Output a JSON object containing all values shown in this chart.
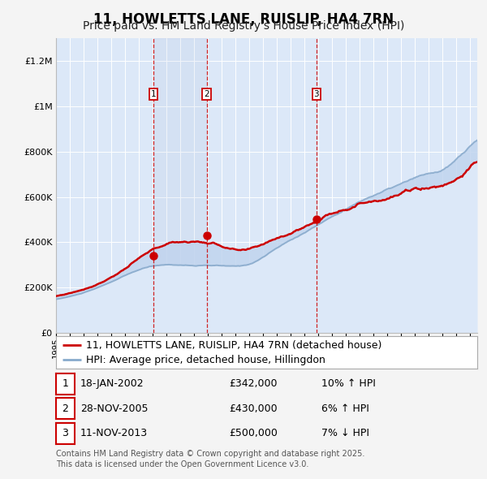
{
  "title": "11, HOWLETTS LANE, RUISLIP, HA4 7RN",
  "subtitle": "Price paid vs. HM Land Registry's House Price Index (HPI)",
  "legend_line1": "11, HOWLETTS LANE, RUISLIP, HA4 7RN (detached house)",
  "legend_line2": "HPI: Average price, detached house, Hillingdon",
  "sale_labels": [
    "1",
    "2",
    "3"
  ],
  "sale_dates_str": [
    "18-JAN-2002",
    "28-NOV-2005",
    "11-NOV-2013"
  ],
  "sale_prices_str": [
    "£342,000",
    "£430,000",
    "£500,000"
  ],
  "sale_hpi_str": [
    "10% ↑ HPI",
    "6% ↑ HPI",
    "7% ↓ HPI"
  ],
  "sale_dates_num": [
    2002.05,
    2005.91,
    2013.86
  ],
  "sale_prices": [
    342000,
    430000,
    500000
  ],
  "fig_bg_color": "#f4f4f4",
  "plot_bg_color": "#dce8f8",
  "grid_color": "#ffffff",
  "red_line_color": "#cc0000",
  "blue_line_color": "#88aacc",
  "shade_color": "#c0d4ee",
  "dashed_line_color": "#cc0000",
  "footnote": "Contains HM Land Registry data © Crown copyright and database right 2025.\nThis data is licensed under the Open Government Licence v3.0.",
  "ylim": [
    0,
    1300000
  ],
  "yticks": [
    0,
    200000,
    400000,
    600000,
    800000,
    1000000,
    1200000
  ],
  "ytick_labels": [
    "£0",
    "£200K",
    "£400K",
    "£600K",
    "£800K",
    "£1M",
    "£1.2M"
  ],
  "xstart": 1995.0,
  "xend": 2025.5,
  "title_fontsize": 12,
  "subtitle_fontsize": 10,
  "tick_fontsize": 8,
  "legend_fontsize": 9,
  "table_fontsize": 9
}
